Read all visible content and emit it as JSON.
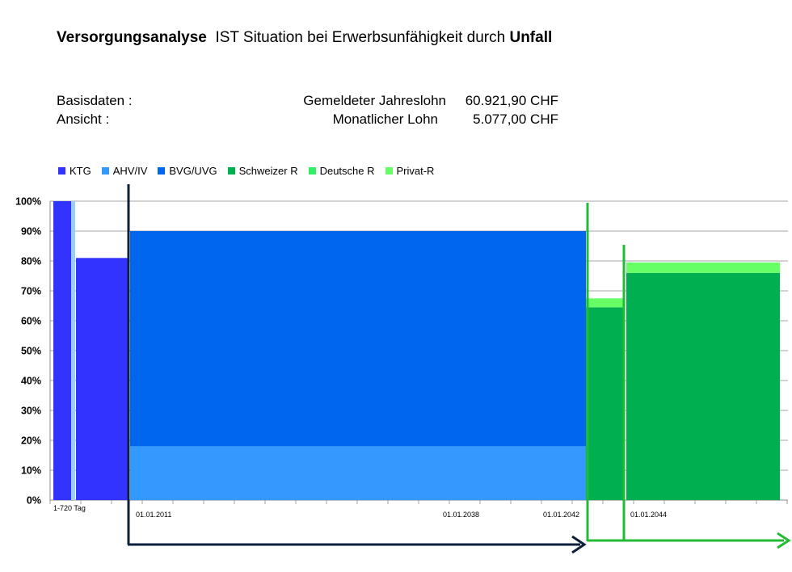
{
  "title": {
    "part1": "Versorgungsanalyse",
    "part2": "IST Situation bei  Erwerbsunfähigkeit durch",
    "part3": "Unfall"
  },
  "basis": {
    "label1": "Basisdaten :",
    "label2": "Ansicht :",
    "desc1": "Gemeldeter Jahreslohn",
    "desc2": "Monatlicher Lohn",
    "value1": "60.921,90 CHF",
    "value2": "5.077,00 CHF"
  },
  "colors": {
    "KTG": "#3333ff",
    "AHV/IV": "#3399ff",
    "BVG/UVG": "#0066ee",
    "Schweizer R": "#00b050",
    "Deutsche R": "#33ee66",
    "Privat-R": "#66ff66",
    "KTG_light": "#99ccff",
    "arrow_dark": "#0d1f3c",
    "arrow_green": "#22bb33"
  },
  "chart_data": {
    "type": "bar",
    "legend": [
      "KTG",
      "AHV/IV",
      "BVG/UVG",
      "Schweizer R",
      "Deutsche R",
      "Privat-R"
    ],
    "legend_position": "top-left",
    "ylim": [
      0,
      100
    ],
    "y_ticks": [
      "0%",
      "10%",
      "20%",
      "30%",
      "40%",
      "50%",
      "60%",
      "70%",
      "80%",
      "90%",
      "100%"
    ],
    "x_tick_labels": [
      "1-720  Tag",
      "01.01.2011",
      "01.01.2038",
      "01.01.2042",
      "01.01.2044"
    ],
    "grid": true,
    "segments": [
      {
        "label": "1-720  Tag",
        "stack": [
          {
            "series": "KTG",
            "value": 100
          }
        ]
      },
      {
        "label": "",
        "stack": [
          {
            "series": "KTG",
            "value": 81
          }
        ]
      },
      {
        "label": "01.01.2011",
        "stack": [
          {
            "series": "AHV/IV",
            "value": 18
          },
          {
            "series": "BVG/UVG",
            "value": 72
          }
        ]
      },
      {
        "label": "01.01.2042",
        "stack": [
          {
            "series": "Schweizer R",
            "value": 64.5
          },
          {
            "series": "Privat-R",
            "value": 3
          }
        ]
      },
      {
        "label": "01.01.2044",
        "stack": [
          {
            "series": "Schweizer R",
            "value": 76
          },
          {
            "series": "Privat-R",
            "value": 3.5
          }
        ]
      }
    ]
  }
}
